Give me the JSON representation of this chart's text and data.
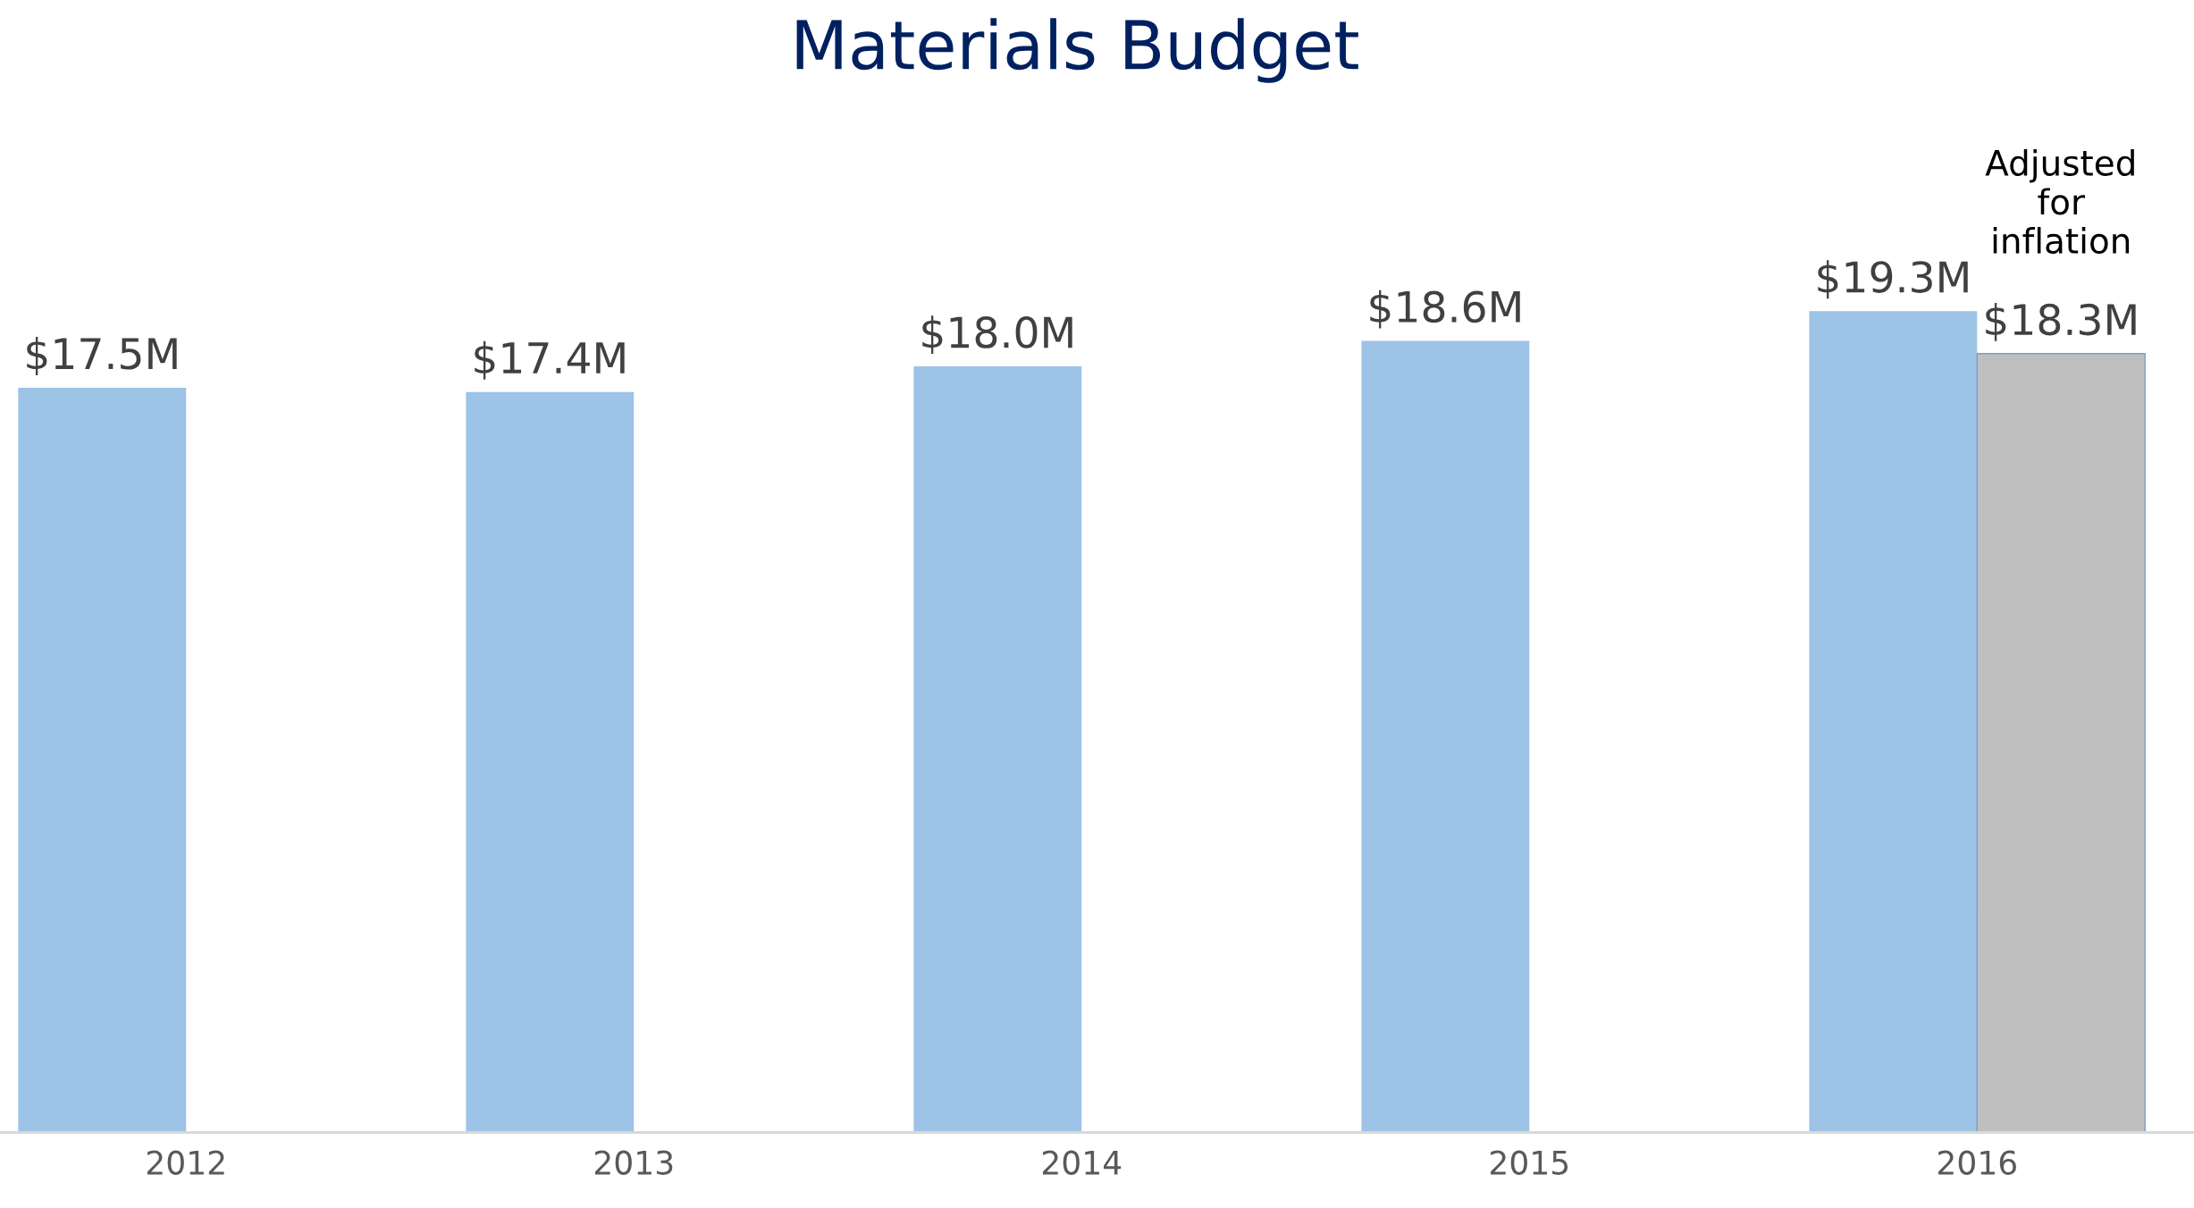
{
  "chart_data": {
    "type": "bar",
    "title": "Materials Budget",
    "categories": [
      "2012",
      "2013",
      "2014",
      "2015",
      "2016"
    ],
    "series": [
      {
        "color": "#9dc3e6",
        "values": [
          17.5,
          17.4,
          18.0,
          18.6,
          19.3
        ],
        "value_labels": [
          "$17.5M",
          "$17.4M",
          "$18.0M",
          "$18.6M",
          "$19.3M"
        ]
      },
      {
        "name": "Adjusted for inflation",
        "color": "#bfbfbf",
        "values": [
          null,
          null,
          null,
          null,
          18.3
        ],
        "value_labels": [
          null,
          null,
          null,
          null,
          "$18.3M"
        ]
      }
    ],
    "grid": false,
    "legend": false
  }
}
